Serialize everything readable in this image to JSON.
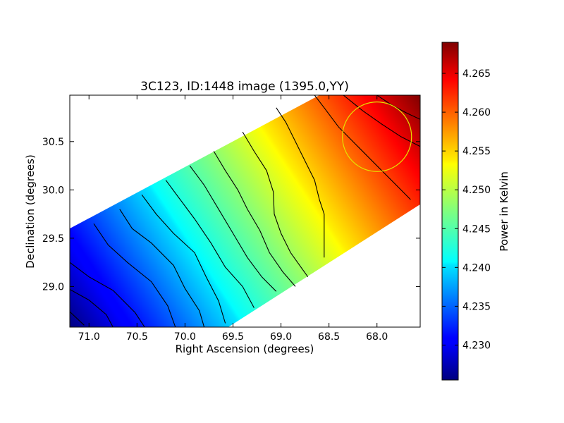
{
  "chart_data": {
    "type": "heatmap",
    "title": "3C123, ID:1448 image (1395.0,YY)",
    "xlabel": "Right Ascension (degrees)",
    "ylabel": "Declination (degrees)",
    "xlim": [
      71.2,
      67.55
    ],
    "ylim": [
      28.58,
      30.98
    ],
    "x_ticks": [
      71.0,
      70.5,
      70.0,
      69.5,
      69.0,
      68.5,
      68.0
    ],
    "x_tick_labels": [
      "71.0",
      "70.5",
      "70.0",
      "69.5",
      "69.0",
      "68.5",
      "68.0"
    ],
    "y_ticks": [
      29.0,
      29.5,
      30.0,
      30.5
    ],
    "y_tick_labels": [
      "29.0",
      "29.5",
      "30.0",
      "30.5"
    ],
    "colorbar": {
      "label": "Power in Kelvin",
      "range": [
        4.2255,
        4.269
      ],
      "ticks": [
        4.23,
        4.235,
        4.24,
        4.245,
        4.25,
        4.255,
        4.26,
        4.265
      ],
      "tick_labels": [
        "4.230",
        "4.235",
        "4.240",
        "4.245",
        "4.250",
        "4.255",
        "4.260",
        "4.265"
      ],
      "colormap": "jet"
    },
    "value_gradient": {
      "min_value": 4.2255,
      "min_at": {
        "ra": 71.2,
        "dec": 28.58
      },
      "max_value": 4.269,
      "max_at": {
        "ra": 67.55,
        "dec": 30.98
      }
    },
    "data_footprint": [
      {
        "ra": 71.2,
        "dec": 29.6
      },
      {
        "ra": 68.6,
        "dec": 30.98
      },
      {
        "ra": 67.55,
        "dec": 30.98
      },
      {
        "ra": 67.55,
        "dec": 29.85
      },
      {
        "ra": 69.55,
        "dec": 28.58
      },
      {
        "ra": 71.2,
        "dec": 28.58
      }
    ],
    "contour_lines": [
      {
        "points": [
          {
            "ra": 71.2,
            "dec": 28.74
          },
          {
            "ra": 71.05,
            "dec": 28.6
          }
        ]
      },
      {
        "points": [
          {
            "ra": 71.2,
            "dec": 28.97
          },
          {
            "ra": 71.0,
            "dec": 28.86
          },
          {
            "ra": 70.82,
            "dec": 28.71
          },
          {
            "ra": 70.75,
            "dec": 28.58
          }
        ]
      },
      {
        "points": [
          {
            "ra": 71.2,
            "dec": 29.25
          },
          {
            "ra": 71.0,
            "dec": 29.1
          },
          {
            "ra": 70.75,
            "dec": 28.96
          },
          {
            "ra": 70.52,
            "dec": 28.73
          },
          {
            "ra": 70.42,
            "dec": 28.58
          }
        ]
      },
      {
        "points": [
          {
            "ra": 70.95,
            "dec": 29.65
          },
          {
            "ra": 70.8,
            "dec": 29.43
          },
          {
            "ra": 70.6,
            "dec": 29.25
          },
          {
            "ra": 70.35,
            "dec": 29.05
          },
          {
            "ra": 70.18,
            "dec": 28.8
          },
          {
            "ra": 70.1,
            "dec": 28.58
          }
        ]
      },
      {
        "points": [
          {
            "ra": 70.68,
            "dec": 29.8
          },
          {
            "ra": 70.55,
            "dec": 29.6
          },
          {
            "ra": 70.35,
            "dec": 29.45
          },
          {
            "ra": 70.12,
            "dec": 29.22
          },
          {
            "ra": 70.0,
            "dec": 28.98
          },
          {
            "ra": 69.85,
            "dec": 28.75
          },
          {
            "ra": 69.8,
            "dec": 28.58
          }
        ]
      },
      {
        "points": [
          {
            "ra": 70.45,
            "dec": 29.95
          },
          {
            "ra": 70.3,
            "dec": 29.75
          },
          {
            "ra": 70.12,
            "dec": 29.55
          },
          {
            "ra": 69.9,
            "dec": 29.35
          },
          {
            "ra": 69.78,
            "dec": 29.1
          },
          {
            "ra": 69.65,
            "dec": 28.85
          },
          {
            "ra": 69.58,
            "dec": 28.62
          }
        ]
      },
      {
        "points": [
          {
            "ra": 70.2,
            "dec": 30.1
          },
          {
            "ra": 70.05,
            "dec": 29.9
          },
          {
            "ra": 69.9,
            "dec": 29.7
          },
          {
            "ra": 69.73,
            "dec": 29.45
          },
          {
            "ra": 69.58,
            "dec": 29.2
          },
          {
            "ra": 69.4,
            "dec": 29.0
          },
          {
            "ra": 69.28,
            "dec": 28.78
          }
        ]
      },
      {
        "points": [
          {
            "ra": 69.95,
            "dec": 30.25
          },
          {
            "ra": 69.8,
            "dec": 30.05
          },
          {
            "ra": 69.65,
            "dec": 29.8
          },
          {
            "ra": 69.5,
            "dec": 29.55
          },
          {
            "ra": 69.35,
            "dec": 29.3
          },
          {
            "ra": 69.2,
            "dec": 29.1
          },
          {
            "ra": 69.05,
            "dec": 28.95
          }
        ]
      },
      {
        "points": [
          {
            "ra": 69.7,
            "dec": 30.4
          },
          {
            "ra": 69.58,
            "dec": 30.2
          },
          {
            "ra": 69.45,
            "dec": 30.0
          },
          {
            "ra": 69.35,
            "dec": 29.8
          },
          {
            "ra": 69.22,
            "dec": 29.58
          },
          {
            "ra": 69.12,
            "dec": 29.35
          },
          {
            "ra": 68.98,
            "dec": 29.15
          },
          {
            "ra": 68.85,
            "dec": 29.0
          }
        ]
      },
      {
        "points": [
          {
            "ra": 69.4,
            "dec": 30.6
          },
          {
            "ra": 69.28,
            "dec": 30.4
          },
          {
            "ra": 69.15,
            "dec": 30.2
          },
          {
            "ra": 69.08,
            "dec": 29.98
          },
          {
            "ra": 69.07,
            "dec": 29.75
          },
          {
            "ra": 69.0,
            "dec": 29.55
          },
          {
            "ra": 68.9,
            "dec": 29.35
          },
          {
            "ra": 68.72,
            "dec": 29.1
          }
        ]
      },
      {
        "points": [
          {
            "ra": 69.05,
            "dec": 30.85
          },
          {
            "ra": 68.95,
            "dec": 30.7
          },
          {
            "ra": 68.85,
            "dec": 30.5
          },
          {
            "ra": 68.75,
            "dec": 30.3
          },
          {
            "ra": 68.65,
            "dec": 30.1
          },
          {
            "ra": 68.6,
            "dec": 29.9
          },
          {
            "ra": 68.55,
            "dec": 29.75
          },
          {
            "ra": 68.55,
            "dec": 29.52
          },
          {
            "ra": 68.55,
            "dec": 29.3
          }
        ]
      },
      {
        "points": [
          {
            "ra": 68.65,
            "dec": 30.98
          },
          {
            "ra": 68.55,
            "dec": 30.85
          },
          {
            "ra": 68.4,
            "dec": 30.65
          },
          {
            "ra": 68.2,
            "dec": 30.45
          },
          {
            "ra": 68.0,
            "dec": 30.25
          },
          {
            "ra": 67.8,
            "dec": 30.05
          },
          {
            "ra": 67.65,
            "dec": 29.9
          }
        ]
      },
      {
        "points": [
          {
            "ra": 68.35,
            "dec": 30.98
          },
          {
            "ra": 68.15,
            "dec": 30.82
          },
          {
            "ra": 67.95,
            "dec": 30.68
          },
          {
            "ra": 67.75,
            "dec": 30.55
          },
          {
            "ra": 67.55,
            "dec": 30.45
          }
        ]
      },
      {
        "points": [
          {
            "ra": 68.0,
            "dec": 30.98
          },
          {
            "ra": 67.85,
            "dec": 30.88
          },
          {
            "ra": 67.7,
            "dec": 30.8
          },
          {
            "ra": 67.55,
            "dec": 30.73
          }
        ]
      }
    ],
    "circle_marker": {
      "ra": 68.0,
      "dec": 30.55,
      "radius_deg": 0.36,
      "color": "#e5e000"
    },
    "colors": {
      "contour": "#000000",
      "axes": "#000000",
      "background": "#ffffff"
    },
    "grid": false
  }
}
